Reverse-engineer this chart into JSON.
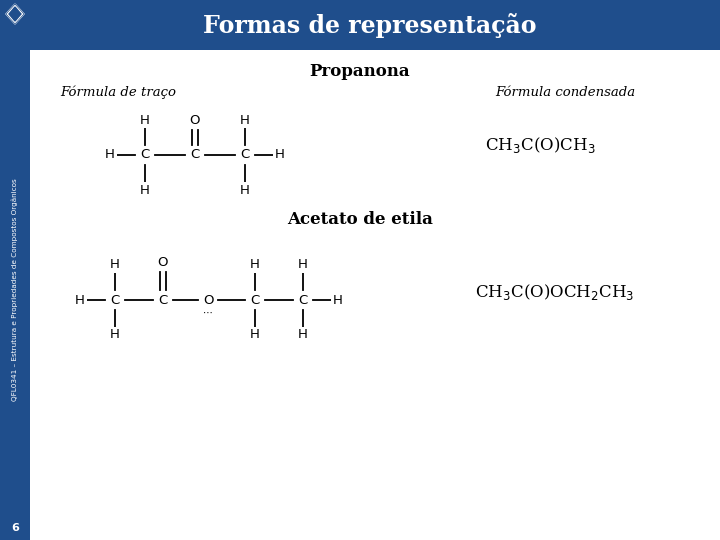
{
  "title": "Formas de representação",
  "title_bg_color": "#1F4E8C",
  "title_text_color": "#FFFFFF",
  "slide_bg_color": "#F0F0F0",
  "sidebar_color": "#1F4E8C",
  "sidebar_text": "QFL0341 – Estrutura e Propriedades de Compostos Orgânicos",
  "page_number": "6",
  "propanona_label": "Propanona",
  "formula_trace_label": "Fórmula de traço",
  "formula_condensed_label": "Fórmula condensada",
  "acetato_label": "Acetato de etila"
}
